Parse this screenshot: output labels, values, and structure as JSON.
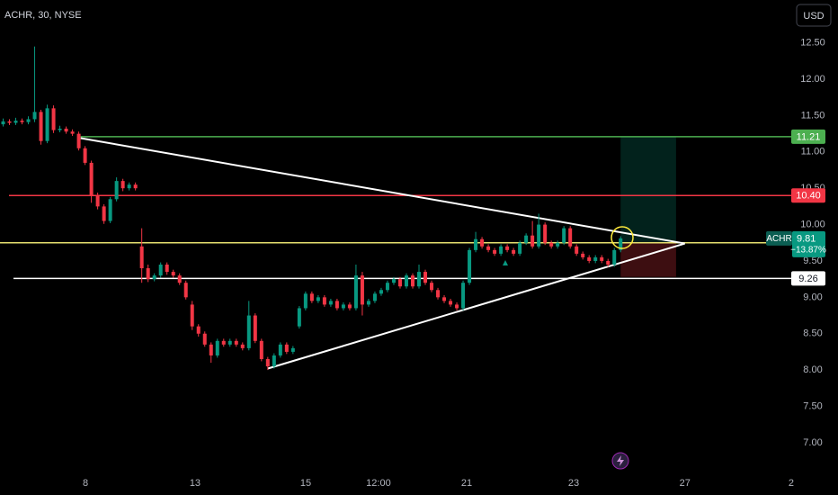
{
  "chart_data": {
    "type": "candlestick",
    "title": "ACHR, 30, NYSE",
    "currency": "USD",
    "symbol": "ACHR",
    "change_label": "−13.87%",
    "up_color": "#089981",
    "down_color": "#f23645",
    "grid": false,
    "ylim": [
      6.59,
      13.09
    ],
    "yticks": [
      {
        "value": 7,
        "label": "7.00"
      },
      {
        "value": 7.5,
        "label": "7.50"
      },
      {
        "value": 8,
        "label": "8.00"
      },
      {
        "value": 8.5,
        "label": "8.50"
      },
      {
        "value": 9,
        "label": "9.00"
      },
      {
        "value": 9.5,
        "label": "9.50"
      },
      {
        "value": 10,
        "label": "10.00"
      },
      {
        "value": 10.5,
        "label": "10.50"
      },
      {
        "value": 11,
        "label": "11.00"
      },
      {
        "value": 11.5,
        "label": "11.50"
      },
      {
        "value": 12,
        "label": "12.00"
      },
      {
        "value": 12.5,
        "label": "12.50"
      }
    ],
    "xlim": [
      -0.5,
      132.5
    ],
    "xticks": [
      {
        "value": 13.06,
        "label": "8"
      },
      {
        "value": 30.46,
        "label": "13"
      },
      {
        "value": 48.02,
        "label": "15"
      },
      {
        "value": 59.57,
        "label": "12:00"
      },
      {
        "value": 73.56,
        "label": "21"
      },
      {
        "value": 90.54,
        "label": "23"
      },
      {
        "value": 108.2,
        "label": "27"
      },
      {
        "value": 125.07,
        "label": "2"
      }
    ],
    "open": [
      11.38,
      11.42,
      11.4,
      11.43,
      11.41,
      11.45,
      11.55,
      11.15,
      11.6,
      11.3,
      11.32,
      11.28,
      11.25,
      11.05,
      10.85,
      10.4,
      10.25,
      10.05,
      10.35,
      10.6,
      10.5,
      10.55,
      9.7,
      9.4,
      9.25,
      9.3,
      9.45,
      9.35,
      9.3,
      9.2,
      8.9,
      8.6,
      8.5,
      8.35,
      8.2,
      8.4,
      8.35,
      8.4,
      8.35,
      8.3,
      8.75,
      8.4,
      8.15,
      8.05,
      8.2,
      8.35,
      8.25,
      8.6,
      8.85,
      9.05,
      8.95,
      9.0,
      8.9,
      8.95,
      8.85,
      8.9,
      8.85,
      9.3,
      8.9,
      8.95,
      9.05,
      9.1,
      9.2,
      9.25,
      9.15,
      9.3,
      9.15,
      9.35,
      9.2,
      9.1,
      9.0,
      8.95,
      8.9,
      8.85,
      9.2,
      9.65,
      9.8,
      9.7,
      9.65,
      9.6,
      9.7,
      9.65,
      9.6,
      9.75,
      9.85,
      9.7,
      10.0,
      9.75,
      9.7,
      9.75,
      9.95,
      9.7,
      9.6,
      9.55,
      9.5,
      9.55,
      9.5,
      9.45,
      9.65
    ],
    "high": [
      11.46,
      11.45,
      11.47,
      11.46,
      11.49,
      12.45,
      11.58,
      11.65,
      11.64,
      11.36,
      11.35,
      11.31,
      11.28,
      11.08,
      10.88,
      10.44,
      10.28,
      10.38,
      10.65,
      10.63,
      10.58,
      10.58,
      9.95,
      9.45,
      9.33,
      9.48,
      9.48,
      9.38,
      9.33,
      9.23,
      8.95,
      8.63,
      8.53,
      8.38,
      8.43,
      8.43,
      8.43,
      8.43,
      8.38,
      8.95,
      8.78,
      8.43,
      8.18,
      8.23,
      8.38,
      8.38,
      8.33,
      8.88,
      9.08,
      9.08,
      9.03,
      9.03,
      8.98,
      8.98,
      8.93,
      8.93,
      9.45,
      9.35,
      8.98,
      9.08,
      9.13,
      9.23,
      9.28,
      9.28,
      9.33,
      9.33,
      9.45,
      9.38,
      9.23,
      9.13,
      9.03,
      8.98,
      8.93,
      9.23,
      9.68,
      9.9,
      9.83,
      9.73,
      9.68,
      9.73,
      9.73,
      9.68,
      9.78,
      9.88,
      10.05,
      10.15,
      10.03,
      9.78,
      9.78,
      9.98,
      9.98,
      9.73,
      9.63,
      9.58,
      9.58,
      9.58,
      9.53,
      9.68,
      9.84
    ],
    "low": [
      11.35,
      11.37,
      11.37,
      11.38,
      11.38,
      11.41,
      11.1,
      11.12,
      11.26,
      11.27,
      11.25,
      11.22,
      11.02,
      10.82,
      10.3,
      10.21,
      10.01,
      10.02,
      10.32,
      10.46,
      10.47,
      10.47,
      9.2,
      9.21,
      9.22,
      9.27,
      9.31,
      9.27,
      9.17,
      8.97,
      8.55,
      8.46,
      8.32,
      8.1,
      8.17,
      8.32,
      8.32,
      8.32,
      8.27,
      8.27,
      8.37,
      8.12,
      8.0,
      8.02,
      8.17,
      8.22,
      8.22,
      8.57,
      8.82,
      8.92,
      8.92,
      8.87,
      8.87,
      8.82,
      8.82,
      8.82,
      8.82,
      8.75,
      8.87,
      8.92,
      9.02,
      9.07,
      9.17,
      9.12,
      9.12,
      9.12,
      9.12,
      9.17,
      9.07,
      8.97,
      8.92,
      8.87,
      8.82,
      8.82,
      9.17,
      9.62,
      9.67,
      9.62,
      9.57,
      9.57,
      9.62,
      9.57,
      9.57,
      9.72,
      9.67,
      9.67,
      9.72,
      9.67,
      9.67,
      9.72,
      9.67,
      9.57,
      9.52,
      9.47,
      9.47,
      9.47,
      9.42,
      9.42,
      9.62
    ],
    "close": [
      11.42,
      11.4,
      11.43,
      11.41,
      11.45,
      11.55,
      11.15,
      11.6,
      11.3,
      11.32,
      11.28,
      11.25,
      11.05,
      10.85,
      10.4,
      10.25,
      10.05,
      10.35,
      10.6,
      10.5,
      10.55,
      10.5,
      9.4,
      9.25,
      9.3,
      9.45,
      9.35,
      9.3,
      9.2,
      9.0,
      8.6,
      8.5,
      8.35,
      8.2,
      8.4,
      8.35,
      8.4,
      8.35,
      8.3,
      8.75,
      8.4,
      8.15,
      8.05,
      8.2,
      8.35,
      8.25,
      8.3,
      8.85,
      9.05,
      8.95,
      9.0,
      8.9,
      8.95,
      8.85,
      8.9,
      8.85,
      9.3,
      8.9,
      8.95,
      9.05,
      9.1,
      9.2,
      9.25,
      9.15,
      9.3,
      9.15,
      9.35,
      9.2,
      9.1,
      9.0,
      8.95,
      8.9,
      8.85,
      9.2,
      9.65,
      9.8,
      9.7,
      9.65,
      9.6,
      9.7,
      9.65,
      9.6,
      9.75,
      9.85,
      9.7,
      10.0,
      9.75,
      9.7,
      9.75,
      9.95,
      9.7,
      9.6,
      9.55,
      9.5,
      9.55,
      9.5,
      9.45,
      9.65,
      9.81
    ],
    "levels": [
      {
        "price": 11.21,
        "start": 12.3,
        "color": "#4caf50",
        "text_color": "#ffffff"
      },
      {
        "price": {
          "value": 10.4,
          "label": "10.40"
        },
        "start": 0.93,
        "color": "#f23645",
        "text_color": "#ffffff"
      },
      {
        "price": 9.75,
        "start": -0.5,
        "color": "#e6df6f"
      },
      {
        "price": 9.26,
        "start": 1.64,
        "color": "#ffffff",
        "text_color": "#131722"
      }
    ],
    "trendlines": [
      {
        "from": [
          12.3,
          11.19
        ],
        "to": [
          108.2,
          9.74
        ]
      },
      {
        "from": [
          42.0,
          8.02
        ],
        "to": [
          108.2,
          9.74
        ]
      }
    ],
    "position": {
      "start": 98,
      "end": 106.8,
      "entry": 9.75,
      "target": 11.21,
      "stop": 9.28
    }
  }
}
